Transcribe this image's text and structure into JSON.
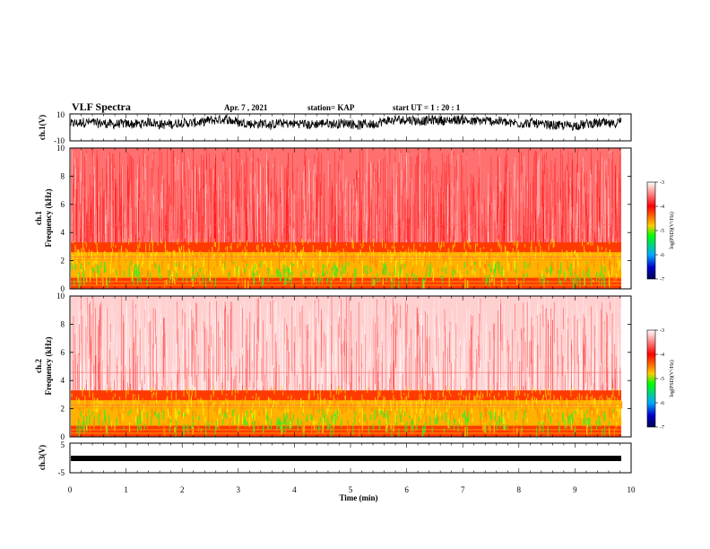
{
  "header": {
    "title": "VLF Spectra",
    "date": "Apr. 7 , 2021",
    "station": "station= KAP",
    "start": "start UT = 1 : 20 : 1"
  },
  "chart_data": [
    {
      "type": "line",
      "ylabel": "ch.1(V)",
      "ylim": [
        -10,
        10
      ],
      "yticks": [
        "10",
        "-10"
      ],
      "xlim": [
        0,
        10
      ],
      "note": "noisy waveform, amplitude mostly between about -3 and 8 V"
    },
    {
      "type": "heatmap",
      "ylabel_top": "ch.1",
      "ylabel": "Frequency (kHz)",
      "ylim": [
        0,
        10
      ],
      "yticks": [
        "0",
        "2",
        "4",
        "6",
        "8",
        "10"
      ],
      "xlim": [
        0,
        10
      ],
      "colorbar": {
        "label": "log(PSD)(V²/Hz)",
        "ticks": [
          "-3",
          "-4",
          "-5",
          "-6",
          "-7"
        ],
        "range": [
          -7,
          -3
        ]
      },
      "colors": [
        "#ffffff",
        "#ff0000",
        "#ffaa00",
        "#ffff00",
        "#00ff00",
        "#00aaff",
        "#0000cc",
        "#000088"
      ]
    },
    {
      "type": "heatmap",
      "ylabel_top": "ch.2",
      "ylabel": "Frequency (kHz)",
      "ylim": [
        0,
        10
      ],
      "yticks": [
        "0",
        "2",
        "4",
        "6",
        "8",
        "10"
      ],
      "xlim": [
        0,
        10
      ],
      "colorbar": {
        "label": "log(PSD)(V²/Hz)",
        "ticks": [
          "-3",
          "-4",
          "-5",
          "-6",
          "-7"
        ],
        "range": [
          -7,
          -3
        ]
      }
    },
    {
      "type": "line",
      "ylabel": "ch.3(V)",
      "ylim": [
        -5,
        5
      ],
      "yticks": [
        "5",
        "0",
        "-5"
      ],
      "xlim": [
        0,
        10
      ],
      "xlabel": "Time (min)",
      "xticks": [
        "0",
        "1",
        "2",
        "3",
        "4",
        "5",
        "6",
        "7",
        "8",
        "9",
        "10"
      ],
      "note": "near-constant thick band slightly above 0 V"
    }
  ]
}
